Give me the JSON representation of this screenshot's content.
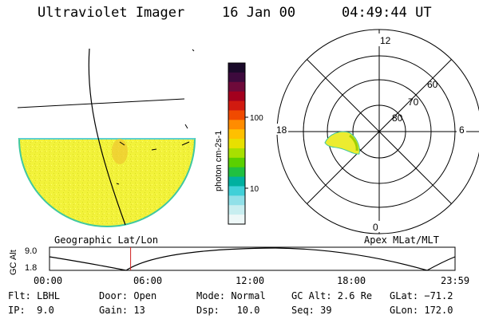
{
  "header": {
    "instrument": "Ultraviolet Imager",
    "date": "16 Jan 00",
    "time": "04:49:44 UT"
  },
  "colorbar": {
    "unit_label": "photon cm-2s-1",
    "ticks": [
      "100",
      "10"
    ],
    "colors": [
      "#1a0a2a",
      "#3d0a3d",
      "#6e0a3a",
      "#a3001e",
      "#d11a10",
      "#f04a00",
      "#ff8c00",
      "#ffc000",
      "#e8e000",
      "#a8e000",
      "#5ad000",
      "#20c040",
      "#00b0a0",
      "#40d0d8",
      "#90e0e8",
      "#c8eef0",
      "#eef8f8"
    ]
  },
  "geo_panel": {
    "label": "Geographic Lat/Lon"
  },
  "polar_panel": {
    "label": "Apex MLat/MLT",
    "mlt_labels": {
      "top": "12",
      "left": "18",
      "right": "6",
      "bottom": "0"
    },
    "lat_labels": [
      "60",
      "70",
      "80"
    ]
  },
  "timeline": {
    "axis_label": "GC Alt",
    "y_ticks": [
      "9.0",
      "1.8"
    ],
    "x_ticks": [
      "00:00",
      "06:00",
      "12:00",
      "18:00",
      "23:59"
    ],
    "current_time_fraction": 0.2
  },
  "info": {
    "flt": "Flt: LBHL",
    "ip": "IP:  9.0",
    "door": "Door: Open",
    "gain": "Gain: 13",
    "mode": "Mode: Normal",
    "dsp": "Dsp:   10.0",
    "gc_alt": "GC Alt: 2.6 Re",
    "seq": "Seq: 39",
    "glat": "GLat: −71.2",
    "glon": "GLon: 172.0"
  }
}
